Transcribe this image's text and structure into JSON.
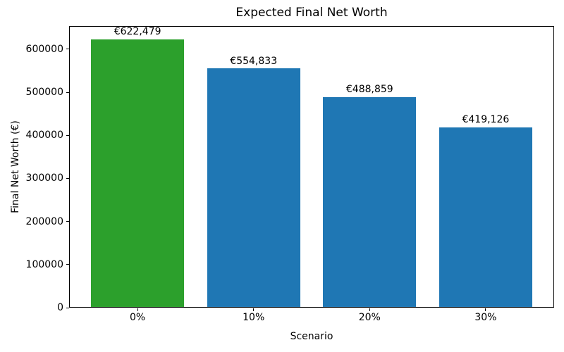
{
  "chart_data": {
    "type": "bar",
    "title": "Expected Final Net Worth",
    "xlabel": "Scenario",
    "ylabel": "Final Net Worth (€)",
    "categories": [
      "0%",
      "10%",
      "20%",
      "30%"
    ],
    "values": [
      622479,
      554833,
      488859,
      419126
    ],
    "bar_labels": [
      "€622,479",
      "€554,833",
      "€488,859",
      "€419,126"
    ],
    "bar_colors": [
      "#2ca02c",
      "#1f77b4",
      "#1f77b4",
      "#1f77b4"
    ],
    "ylim": [
      0,
      653603
    ],
    "yticks": [
      0,
      100000,
      200000,
      300000,
      400000,
      500000,
      600000
    ],
    "ytick_labels": [
      "0",
      "100000",
      "200000",
      "300000",
      "400000",
      "500000",
      "600000"
    ],
    "grid": false,
    "legend_position": "none",
    "bar_width_fraction": 0.8
  }
}
